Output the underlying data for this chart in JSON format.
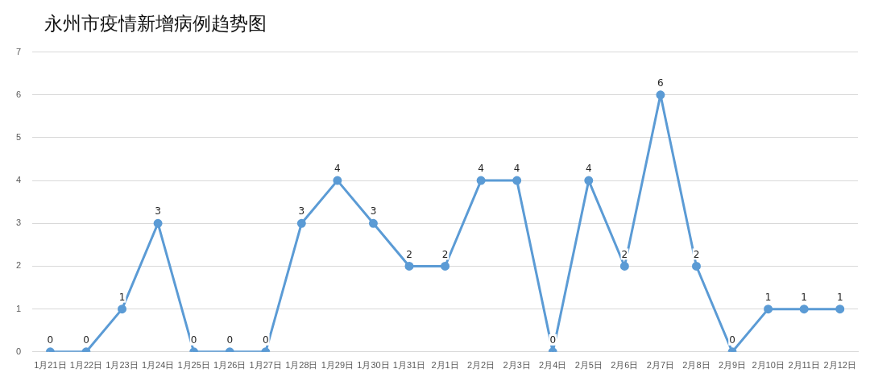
{
  "chart_data": {
    "type": "line",
    "title": "永州市疫情新增病例趋势图",
    "categories": [
      "1月21日",
      "1月22日",
      "1月23日",
      "1月24日",
      "1月25日",
      "1月26日",
      "1月27日",
      "1月28日",
      "1月29日",
      "1月30日",
      "1月31日",
      "2月1日",
      "2月2日",
      "2月3日",
      "2月4日",
      "2月5日",
      "2月6日",
      "2月7日",
      "2月8日",
      "2月9日",
      "2月10日",
      "2月11日",
      "2月12日"
    ],
    "series": [
      {
        "color": "#5b9bd5",
        "values": [
          0,
          0,
          1,
          3,
          0,
          0,
          0,
          3,
          4,
          3,
          2,
          2,
          4,
          4,
          0,
          4,
          2,
          6,
          2,
          0,
          1,
          1,
          1
        ]
      }
    ],
    "ylim": [
      0,
      7
    ],
    "yticks": [
      0,
      1,
      2,
      3,
      4,
      5,
      6,
      7
    ],
    "grid": "y",
    "legend": false,
    "marker": "circle",
    "line_style": "solid",
    "data_labels": true
  }
}
